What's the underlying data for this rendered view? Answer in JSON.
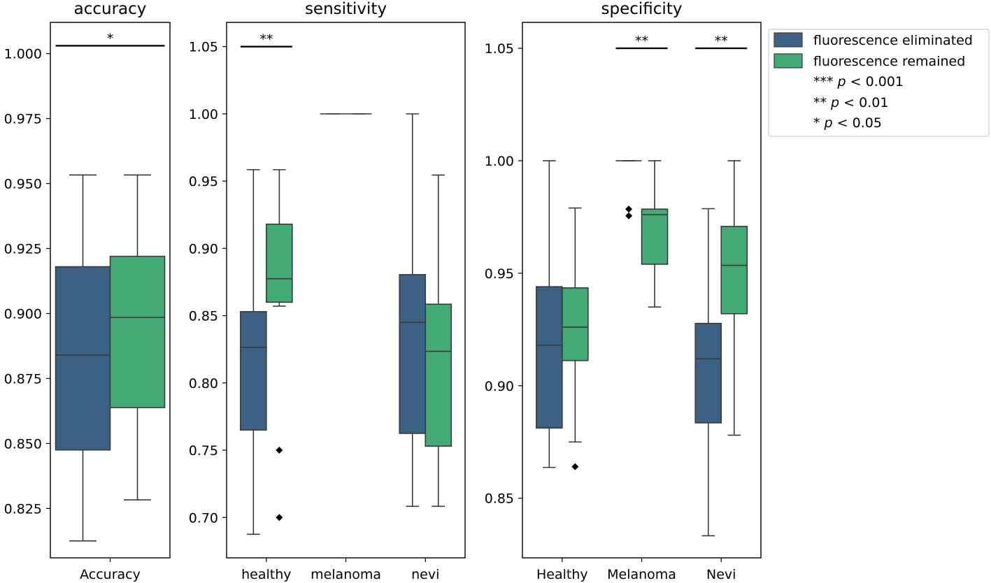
{
  "chart_data": [
    {
      "type": "box",
      "title": "accuracy",
      "categories": [
        "Accuracy"
      ],
      "ylim": [
        0.806,
        1.012
      ],
      "yticks": [
        0.825,
        0.85,
        0.875,
        0.9,
        0.925,
        0.95,
        0.975,
        1.0
      ],
      "ytick_labels": [
        "0.825",
        "0.850",
        "0.875",
        "0.900",
        "0.925",
        "0.950",
        "0.975",
        "1.000"
      ],
      "series": [
        {
          "name": "fluorescence eliminated",
          "boxes": [
            {
              "category": "Accuracy",
              "whislo": 0.8125,
              "q1": 0.8475,
              "med": 0.884,
              "q3": 0.918,
              "whishi": 0.9533,
              "fliers": []
            }
          ]
        },
        {
          "name": "fluorescence remained",
          "boxes": [
            {
              "category": "Accuracy",
              "whislo": 0.8283,
              "q1": 0.8638,
              "med": 0.8985,
              "q3": 0.922,
              "whishi": 0.9533,
              "fliers": []
            }
          ]
        }
      ],
      "annotations": [
        {
          "category": "Accuracy",
          "label": "*",
          "y": 1.003
        }
      ]
    },
    {
      "type": "box",
      "title": "sensitivity",
      "categories": [
        "healthy",
        "melanoma",
        "nevi"
      ],
      "ylim": [
        0.67,
        1.068
      ],
      "yticks": [
        0.7,
        0.75,
        0.8,
        0.85,
        0.9,
        0.95,
        1.0,
        1.05
      ],
      "ytick_labels": [
        "0.70",
        "0.75",
        "0.80",
        "0.85",
        "0.90",
        "0.95",
        "1.00",
        "1.05"
      ],
      "series": [
        {
          "name": "fluorescence eliminated",
          "boxes": [
            {
              "category": "healthy",
              "whislo": 0.6875,
              "q1": 0.765,
              "med": 0.8265,
              "q3": 0.853,
              "whishi": 0.9585,
              "fliers": []
            },
            {
              "category": "melanoma",
              "whislo": 1.0,
              "q1": 1.0,
              "med": 1.0,
              "q3": 1.0,
              "whishi": 1.0,
              "fliers": []
            },
            {
              "category": "nevi",
              "whislo": 0.7083,
              "q1": 0.7625,
              "med": 0.845,
              "q3": 0.8805,
              "whishi": 1.0,
              "fliers": []
            }
          ]
        },
        {
          "name": "fluorescence remained",
          "boxes": [
            {
              "category": "healthy",
              "whislo": 0.8571,
              "q1": 0.86,
              "med": 0.8775,
              "q3": 0.918,
              "whishi": 0.9585,
              "fliers": [
                0.75,
                0.7
              ]
            },
            {
              "category": "melanoma",
              "whislo": 1.0,
              "q1": 1.0,
              "med": 1.0,
              "q3": 1.0,
              "whishi": 1.0,
              "fliers": []
            },
            {
              "category": "nevi",
              "whislo": 0.7083,
              "q1": 0.753,
              "med": 0.8235,
              "q3": 0.8585,
              "whishi": 0.9545,
              "fliers": []
            }
          ]
        }
      ],
      "annotations": [
        {
          "category": "healthy",
          "label": "**",
          "y": 1.05
        }
      ]
    },
    {
      "type": "box",
      "title": "specificity",
      "categories": [
        "Healthy",
        "Melanoma",
        "Nevi"
      ],
      "ylim": [
        0.8235,
        1.0615
      ],
      "yticks": [
        0.85,
        0.9,
        0.95,
        1.0,
        1.05
      ],
      "ytick_labels": [
        "0.85",
        "0.90",
        "0.95",
        "1.00",
        "1.05"
      ],
      "series": [
        {
          "name": "fluorescence eliminated",
          "boxes": [
            {
              "category": "Healthy",
              "whislo": 0.8637,
              "q1": 0.8812,
              "med": 0.918,
              "q3": 0.944,
              "whishi": 1.0,
              "fliers": []
            },
            {
              "category": "Melanoma",
              "whislo": 1.0,
              "q1": 1.0,
              "med": 1.0,
              "q3": 1.0,
              "whishi": 1.0,
              "fliers": [
                0.9785,
                0.9755
              ]
            },
            {
              "category": "Nevi",
              "whislo": 0.8333,
              "q1": 0.8835,
              "med": 0.912,
              "q3": 0.9277,
              "whishi": 0.9787,
              "fliers": []
            }
          ]
        },
        {
          "name": "fluorescence remained",
          "boxes": [
            {
              "category": "Healthy",
              "whislo": 0.875,
              "q1": 0.9112,
              "med": 0.926,
              "q3": 0.9435,
              "whishi": 0.979,
              "fliers": [
                0.864
              ]
            },
            {
              "category": "Melanoma",
              "whislo": 0.935,
              "q1": 0.954,
              "med": 0.976,
              "q3": 0.9785,
              "whishi": 1.0,
              "fliers": []
            },
            {
              "category": "Nevi",
              "whislo": 0.878,
              "q1": 0.932,
              "med": 0.9535,
              "q3": 0.9708,
              "whishi": 1.0,
              "fliers": []
            }
          ]
        }
      ],
      "annotations": [
        {
          "category": "Melanoma",
          "label": "**",
          "y": 1.05
        },
        {
          "category": "Nevi",
          "label": "**",
          "y": 1.05
        }
      ]
    }
  ],
  "legend": {
    "entries": [
      {
        "label": "fluorescence eliminated",
        "color": "#3b6284"
      },
      {
        "label": "fluorescence remained",
        "color": "#42ab74"
      }
    ],
    "significance": [
      {
        "stars": "***",
        "p": "p",
        "rest": " < 0.001"
      },
      {
        "stars": "**",
        "p": "p",
        "rest": " < 0.01"
      },
      {
        "stars": "*",
        "p": "p",
        "rest": " < 0.05"
      }
    ]
  },
  "colors": {
    "series": [
      "#3b6284",
      "#42ab74"
    ],
    "line": "#3a3a3a"
  }
}
